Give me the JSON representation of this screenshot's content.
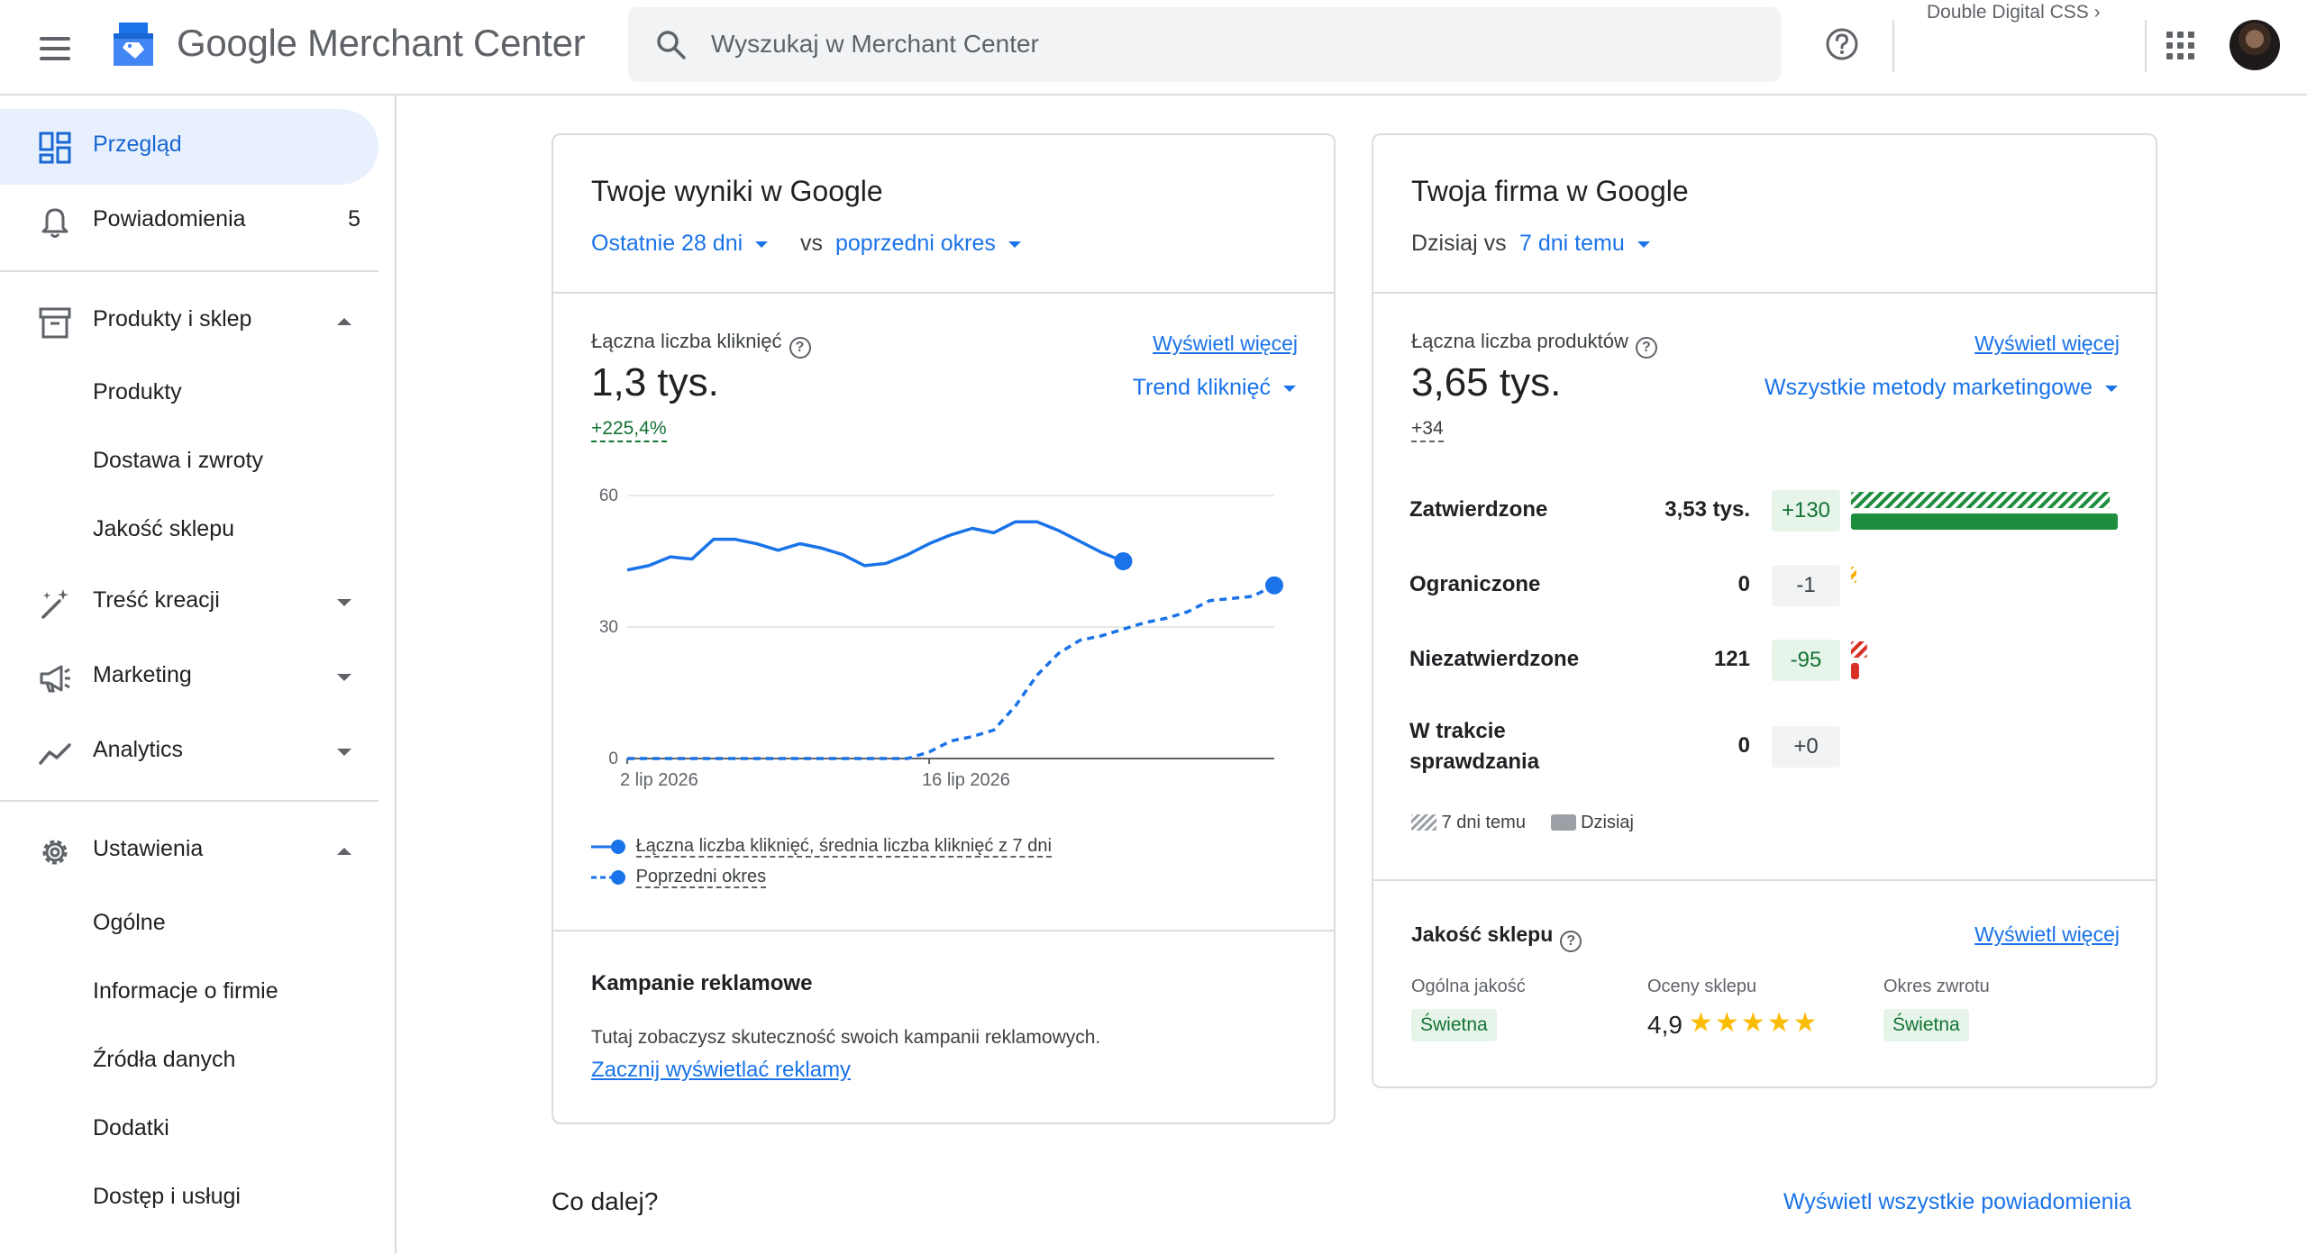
{
  "header": {
    "app_name": "Google Merchant Center",
    "search_placeholder": "Wyszukaj w Merchant Center",
    "account": "Double Digital CSS ›"
  },
  "sidebar": {
    "overview": "Przegląd",
    "notifications": "Powiadomienia",
    "notifications_count": "5",
    "products_store": "Produkty i sklep",
    "products_sub": [
      "Produkty",
      "Dostawa i zwroty",
      "Jakość sklepu"
    ],
    "creative": "Treść kreacji",
    "marketing": "Marketing",
    "analytics": "Analytics",
    "settings": "Ustawienia",
    "settings_sub": [
      "Ogólne",
      "Informacje o firmie",
      "Źródła danych",
      "Dodatki",
      "Dostęp i usługi"
    ]
  },
  "results_card": {
    "title": "Twoje wyniki w Google",
    "period": "Ostatnie 28 dni",
    "vs": "vs",
    "compare": "poprzedni okres",
    "metric_label": "Łączna liczba kliknięć",
    "view_more": "Wyświetl więcej",
    "value": "1,3 tys.",
    "trend_dropdown": "Trend kliknięć",
    "delta": "+225,4%",
    "legend_current": "Łączna liczba kliknięć, średnia liczba kliknięć z 7 dni",
    "legend_previous": "Poprzedni okres",
    "campaigns_title": "Kampanie reklamowe",
    "campaigns_text": "Tutaj zobaczysz skuteczność swoich kampanii reklamowych.",
    "campaigns_link": "Zacznij wyświetlać reklamy"
  },
  "chart_data": {
    "type": "line",
    "ylim": [
      0,
      60
    ],
    "yticks": [
      "0",
      "30",
      "60"
    ],
    "xtick_labels": [
      "2 lip 2026",
      "16 lip 2026"
    ],
    "xtick_index": [
      0,
      14
    ],
    "series": [
      {
        "name": "Łączna liczba kliknięć, średnia liczba kliknięć z 7 dni",
        "style": "solid",
        "values": [
          43,
          44,
          46,
          45.5,
          50,
          50,
          49,
          47.5,
          49,
          48,
          46.5,
          44,
          44.5,
          46.5,
          49,
          51,
          52.5,
          51.5,
          54,
          54,
          52,
          49.5,
          47,
          45
        ]
      },
      {
        "name": "Poprzedni okres",
        "style": "dashed",
        "values": [
          0,
          0,
          0,
          0,
          0,
          0,
          0,
          0,
          0,
          0,
          0,
          0,
          0,
          0,
          1.5,
          4,
          5,
          6.5,
          12,
          19,
          24,
          27,
          28,
          29.5,
          31,
          32,
          33.5,
          36,
          36.5,
          37,
          39.5
        ]
      }
    ],
    "colors": {
      "line": "#1a73e8",
      "grid": "#e0e0e0",
      "axis": "#5f6368"
    }
  },
  "business_card": {
    "title": "Twoja firma w Google",
    "today_vs": "Dzisiaj vs",
    "compare": "7 dni temu",
    "metric_label": "Łączna liczba produktów",
    "view_more": "Wyświetl więcej",
    "value": "3,65 tys.",
    "marketing_dropdown": "Wszystkie metody marketingowe",
    "delta": "+34",
    "status_rows": [
      {
        "label": "Zatwierdzone",
        "value": "3,53 tys.",
        "change": "+130",
        "kind": "pos",
        "bar_fraction": 1.0,
        "prev_fraction": 0.97,
        "color": "#1e8e3e"
      },
      {
        "label": "Ograniczone",
        "value": "0",
        "change": "-1",
        "kind": "neutral",
        "bar_fraction": 0,
        "prev_fraction": 0.02,
        "color": "#f9ab00"
      },
      {
        "label": "Niezatwierdzone",
        "value": "121",
        "change": "-95",
        "kind": "pos",
        "bar_fraction": 0.03,
        "prev_fraction": 0.06,
        "color": "#d93025"
      },
      {
        "label": "W trakcie",
        "label2": "sprawdzania",
        "value": "0",
        "change": "+0",
        "kind": "neutral",
        "bar_fraction": 0,
        "prev_fraction": 0,
        "color": "#9aa0a6"
      }
    ],
    "legend_prev": "7 dni temu",
    "legend_today": "Dzisiaj",
    "quality_title": "Jakość sklepu",
    "quality_view_more": "Wyświetl więcej",
    "overall_label": "Ogólna jakość",
    "overall_badge": "Świetna",
    "ratings_label": "Oceny sklepu",
    "rating": "4,9",
    "rating_stars": 5,
    "return_label": "Okres zwrotu",
    "return_badge": "Świetna"
  },
  "next": {
    "title": "Co dalej?",
    "all_notifications": "Wyświetl wszystkie powiadomienia"
  }
}
